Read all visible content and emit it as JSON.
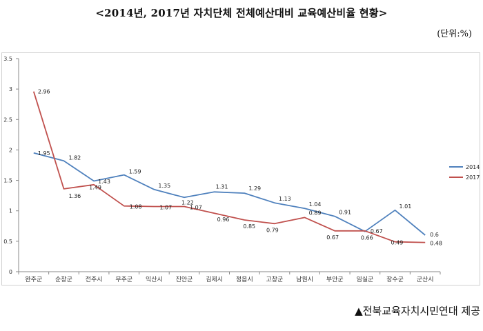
{
  "header": {
    "title": "<2014년, 2017년 자치단체 전체예산대비 교육예산비율 현황>",
    "unit": "(단위:%)"
  },
  "footer": {
    "credit": "▲전북교육자치시민연대 제공"
  },
  "colors": {
    "series_2014": "#4f81bd",
    "series_2017": "#c0504d",
    "axis": "#888888"
  },
  "chart_data": {
    "type": "line",
    "categories": [
      "완주군",
      "순창군",
      "전주시",
      "무주군",
      "익산시",
      "진안군",
      "김제시",
      "정읍시",
      "고창군",
      "남원시",
      "부안군",
      "임실군",
      "장수군",
      "군산시"
    ],
    "series": [
      {
        "name": "2014",
        "values": [
          1.95,
          1.82,
          1.49,
          1.59,
          1.35,
          1.22,
          1.31,
          1.29,
          1.13,
          1.04,
          0.91,
          0.66,
          1.01,
          0.6
        ]
      },
      {
        "name": "2017",
        "values": [
          2.96,
          1.36,
          1.43,
          1.08,
          1.07,
          1.07,
          0.96,
          0.85,
          0.79,
          0.89,
          0.67,
          0.67,
          0.49,
          0.48
        ]
      }
    ],
    "ylim": [
      0,
      3.5
    ],
    "yticks": [
      "0",
      "0.5",
      "1",
      "1.5",
      "2",
      "2.5",
      "3",
      "3.5"
    ],
    "grid": false,
    "legend_position": "right"
  }
}
